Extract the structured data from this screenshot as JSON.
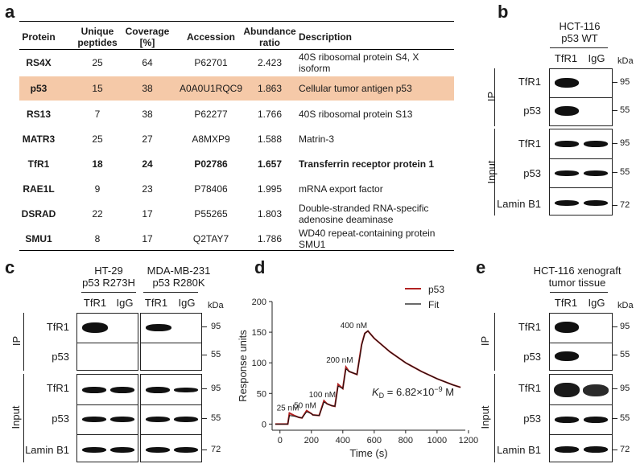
{
  "panel_labels": {
    "a": "a",
    "b": "b",
    "c": "c",
    "d": "d",
    "e": "e"
  },
  "table": {
    "headers": [
      [
        "Protein"
      ],
      [
        "Unique",
        "peptides"
      ],
      [
        "Coverage",
        "[%]"
      ],
      [
        "Accession"
      ],
      [
        "Abundance",
        "ratio"
      ],
      [
        "Description"
      ]
    ],
    "rows": [
      {
        "protein": "RS4X",
        "peptides": "25",
        "coverage": "64",
        "accession": "P62701",
        "ratio": "2.423",
        "desc": [
          "40S ribosomal protein S4, X",
          "isoform"
        ],
        "highlight": false,
        "bold": false
      },
      {
        "protein": "p53",
        "peptides": "15",
        "coverage": "38",
        "accession": "A0A0U1RQC9",
        "ratio": "1.863",
        "desc": [
          "Cellular tumor antigen p53"
        ],
        "highlight": true,
        "bold": false
      },
      {
        "protein": "RS13",
        "peptides": "7",
        "coverage": "38",
        "accession": "P62277",
        "ratio": "1.766",
        "desc": [
          "40S ribosomal protein S13"
        ],
        "highlight": false,
        "bold": false
      },
      {
        "protein": "MATR3",
        "peptides": "25",
        "coverage": "27",
        "accession": "A8MXP9",
        "ratio": "1.588",
        "desc": [
          "Matrin-3"
        ],
        "highlight": false,
        "bold": false
      },
      {
        "protein": "TfR1",
        "peptides": "18",
        "coverage": "24",
        "accession": "P02786",
        "ratio": "1.657",
        "desc": [
          "Transferrin receptor protein 1"
        ],
        "highlight": false,
        "bold": true
      },
      {
        "protein": "RAE1L",
        "peptides": "9",
        "coverage": "23",
        "accession": "P78406",
        "ratio": "1.995",
        "desc": [
          "mRNA export factor"
        ],
        "highlight": false,
        "bold": false
      },
      {
        "protein": "DSRAD",
        "peptides": "22",
        "coverage": "17",
        "accession": "P55265",
        "ratio": "1.803",
        "desc": [
          "Double-stranded RNA-specific",
          "adenosine deaminase"
        ],
        "highlight": false,
        "bold": false
      },
      {
        "protein": "SMU1",
        "peptides": "8",
        "coverage": "17",
        "accession": "Q2TAY7",
        "ratio": "1.786",
        "desc": [
          "WD40 repeat-containing protein",
          "SMU1"
        ],
        "highlight": false,
        "bold": false
      }
    ],
    "highlight_color": "#f5c9a8"
  },
  "panel_b": {
    "title": [
      "HCT-116",
      "p53 WT"
    ],
    "lanes": [
      "TfR1",
      "IgG"
    ],
    "kda": "kDa",
    "ip_label": "IP",
    "input_label": "Input",
    "rows": [
      "TfR1",
      "p53",
      "TfR1",
      "p53",
      "Lamin B1"
    ],
    "markers": [
      "95",
      "55",
      "95",
      "55",
      "72"
    ]
  },
  "panel_c": {
    "titles": [
      [
        "HT-29",
        "p53 R273H"
      ],
      [
        "MDA-MB-231",
        "p53 R280K"
      ]
    ],
    "lanes": [
      "TfR1",
      "IgG",
      "TfR1",
      "IgG"
    ],
    "kda": "kDa",
    "ip_label": "IP",
    "input_label": "Input",
    "rows": [
      "TfR1",
      "p53",
      "TfR1",
      "p53",
      "Lamin B1"
    ],
    "markers": [
      "95",
      "55",
      "95",
      "55",
      "72"
    ]
  },
  "panel_e": {
    "title": [
      "HCT-116 xenograft",
      "tumor tissue"
    ],
    "lanes": [
      "TfR1",
      "IgG"
    ],
    "kda": "kDa",
    "ip_label": "IP",
    "input_label": "Input",
    "rows": [
      "TfR1",
      "p53",
      "TfR1",
      "p53",
      "Lamin B1"
    ],
    "markers": [
      "95",
      "55",
      "95",
      "55",
      "72"
    ]
  },
  "chart_data": {
    "type": "line",
    "title": "",
    "xlabel": "Time (s)",
    "ylabel": "Response units",
    "xlim": [
      -50,
      1180
    ],
    "ylim": [
      -10,
      200
    ],
    "xticks": [
      0,
      200,
      400,
      600,
      800,
      1000,
      1200
    ],
    "yticks": [
      0,
      50,
      100,
      150,
      200
    ],
    "series": [
      {
        "name": "p53",
        "color": "#b22222",
        "x": [
          -30,
          0,
          50,
          60,
          90,
          120,
          140,
          170,
          200,
          210,
          250,
          280,
          300,
          330,
          350,
          370,
          400,
          420,
          440,
          480,
          490,
          520,
          540,
          560,
          600,
          700,
          800,
          900,
          1000,
          1100,
          1150
        ],
        "y": [
          0,
          0,
          0,
          18,
          14,
          11,
          10,
          22,
          17,
          15,
          14,
          38,
          33,
          30,
          29,
          65,
          58,
          93,
          86,
          82,
          81,
          130,
          148,
          152,
          140,
          118,
          100,
          86,
          74,
          64,
          60
        ]
      },
      {
        "name": "Fit",
        "color": "#111111",
        "x": [
          -30,
          0,
          50,
          60,
          90,
          120,
          140,
          170,
          200,
          210,
          250,
          280,
          300,
          330,
          350,
          370,
          400,
          420,
          440,
          480,
          490,
          520,
          540,
          560,
          600,
          700,
          800,
          900,
          1000,
          1100,
          1150
        ],
        "y": [
          0,
          0,
          0,
          14,
          13,
          11,
          10,
          20,
          17,
          15,
          14,
          36,
          33,
          30,
          29,
          62,
          58,
          90,
          86,
          82,
          81,
          128,
          148,
          152,
          140,
          118,
          100,
          86,
          74,
          64,
          60
        ]
      }
    ],
    "annotations": [
      {
        "text": "25 nM",
        "x": 50,
        "y": 22
      },
      {
        "text": "50 nM",
        "x": 160,
        "y": 26
      },
      {
        "text": "100 nM",
        "x": 270,
        "y": 44
      },
      {
        "text": "200 nM",
        "x": 380,
        "y": 100
      },
      {
        "text": "400 nM",
        "x": 470,
        "y": 157
      }
    ],
    "kd_prefix": "K",
    "kd_sub": "D",
    "kd_value": " = 6.82×10",
    "kd_exp": "−9",
    "kd_unit": " M"
  }
}
